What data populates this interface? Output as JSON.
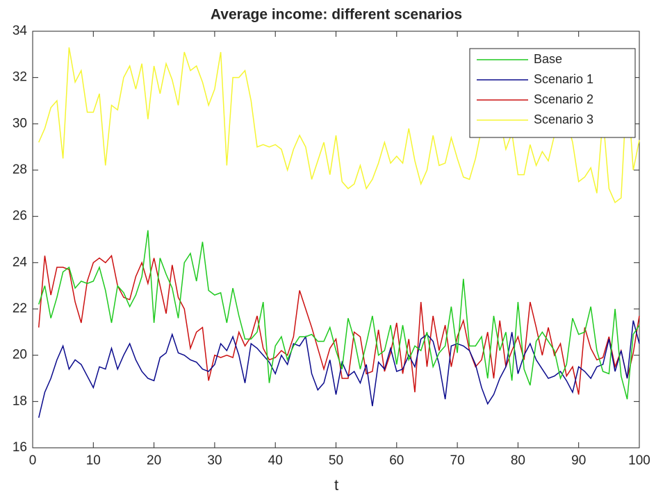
{
  "chart_data": {
    "type": "line",
    "title": "Average income: different scenarios",
    "x_label": "t",
    "x": [
      1,
      2,
      3,
      4,
      5,
      6,
      7,
      8,
      9,
      10,
      11,
      12,
      13,
      14,
      15,
      16,
      17,
      18,
      19,
      20,
      21,
      22,
      23,
      24,
      25,
      26,
      27,
      28,
      29,
      30,
      31,
      32,
      33,
      34,
      35,
      36,
      37,
      38,
      39,
      40,
      41,
      42,
      43,
      44,
      45,
      46,
      47,
      48,
      49,
      50,
      51,
      52,
      53,
      54,
      55,
      56,
      57,
      58,
      59,
      60,
      61,
      62,
      63,
      64,
      65,
      66,
      67,
      68,
      69,
      70,
      71,
      72,
      73,
      74,
      75,
      76,
      77,
      78,
      79,
      80,
      81,
      82,
      83,
      84,
      85,
      86,
      87,
      88,
      89,
      90,
      91,
      92,
      93,
      94,
      95,
      96,
      97,
      98,
      99,
      100
    ],
    "series": [
      {
        "name": "Base",
        "color": "#1fc91f",
        "values": [
          22.2,
          23.0,
          21.6,
          22.5,
          23.6,
          23.8,
          22.9,
          23.2,
          23.1,
          23.2,
          23.8,
          22.8,
          21.4,
          23.0,
          22.7,
          22.1,
          22.6,
          23.4,
          25.4,
          21.4,
          24.2,
          23.5,
          22.9,
          21.6,
          24.0,
          24.4,
          23.2,
          24.9,
          22.8,
          22.6,
          22.7,
          21.4,
          22.9,
          21.7,
          20.7,
          20.7,
          21.0,
          22.3,
          18.8,
          20.4,
          20.8,
          19.8,
          20.4,
          20.8,
          20.8,
          20.9,
          20.6,
          20.6,
          21.2,
          20.2,
          19.4,
          21.6,
          20.7,
          19.4,
          20.5,
          21.7,
          20.0,
          20.2,
          21.3,
          19.6,
          21.3,
          19.8,
          20.4,
          20.2,
          21.0,
          19.5,
          20.1,
          20.4,
          22.1,
          20.1,
          23.3,
          20.4,
          20.4,
          20.8,
          19.0,
          21.7,
          20.2,
          21.0,
          18.9,
          22.3,
          19.4,
          18.7,
          20.6,
          21.0,
          20.6,
          20.2,
          19.0,
          19.6,
          21.6,
          20.9,
          21.0,
          22.1,
          20.2,
          19.3,
          19.2,
          22.0,
          19.1,
          18.1,
          20.9,
          21.3
        ]
      },
      {
        "name": "Scenario 1",
        "color": "#0a0a8c",
        "values": [
          17.3,
          18.4,
          19.0,
          19.8,
          20.4,
          19.4,
          19.8,
          19.6,
          19.1,
          18.6,
          19.5,
          19.4,
          20.3,
          19.4,
          20.0,
          20.5,
          19.8,
          19.3,
          19.0,
          18.9,
          19.9,
          20.1,
          20.9,
          20.1,
          20.0,
          19.8,
          19.7,
          19.4,
          19.3,
          19.6,
          20.5,
          20.2,
          20.8,
          20.0,
          18.8,
          20.5,
          20.3,
          20.0,
          19.7,
          19.2,
          20.0,
          19.6,
          20.5,
          20.4,
          20.8,
          19.2,
          18.5,
          18.8,
          19.8,
          18.3,
          19.7,
          19.1,
          19.3,
          18.8,
          19.6,
          17.8,
          19.7,
          19.4,
          20.3,
          19.3,
          19.4,
          20.0,
          19.5,
          20.7,
          20.9,
          20.6,
          19.6,
          18.1,
          20.4,
          20.5,
          20.4,
          20.2,
          19.6,
          18.6,
          17.9,
          18.3,
          19.0,
          19.5,
          21.0,
          19.2,
          20.0,
          20.5,
          19.8,
          19.4,
          19.0,
          19.1,
          19.3,
          18.9,
          18.4,
          19.5,
          19.3,
          19.0,
          19.5,
          19.6,
          20.7,
          19.3,
          20.2,
          19.0,
          21.5,
          20.5
        ]
      },
      {
        "name": "Scenario 2",
        "color": "#cc1010",
        "values": [
          21.2,
          24.3,
          22.6,
          23.8,
          23.8,
          23.7,
          22.3,
          21.4,
          23.2,
          24.0,
          24.2,
          24.0,
          24.3,
          23.0,
          22.5,
          22.4,
          23.4,
          24.0,
          23.1,
          24.2,
          23.0,
          21.8,
          23.9,
          22.5,
          22.0,
          20.3,
          21.0,
          21.2,
          18.9,
          20.0,
          19.9,
          20.0,
          19.9,
          21.0,
          20.4,
          20.8,
          21.7,
          20.3,
          19.8,
          19.9,
          20.2,
          20.0,
          20.8,
          22.8,
          22.0,
          21.2,
          20.3,
          19.4,
          20.3,
          20.7,
          19.0,
          19.0,
          21.0,
          20.8,
          19.2,
          19.3,
          21.1,
          19.3,
          20.1,
          21.4,
          19.2,
          20.7,
          18.4,
          22.3,
          19.5,
          21.7,
          20.2,
          21.3,
          19.5,
          20.8,
          21.5,
          20.2,
          19.5,
          19.8,
          21.0,
          19.0,
          21.5,
          19.5,
          20.2,
          20.8,
          19.8,
          22.3,
          21.2,
          20.0,
          21.2,
          20.0,
          20.5,
          19.1,
          19.5,
          18.3,
          21.2,
          20.3,
          19.8,
          19.9,
          20.8,
          19.5,
          20.2,
          19.0,
          20.1,
          21.7
        ]
      },
      {
        "name": "Scenario 3",
        "color": "#f5f532",
        "values": [
          29.2,
          29.8,
          30.7,
          31.0,
          28.5,
          33.3,
          31.8,
          32.3,
          30.5,
          30.5,
          31.3,
          28.2,
          30.8,
          30.6,
          32.0,
          32.5,
          31.5,
          32.6,
          30.2,
          32.5,
          31.3,
          32.6,
          31.9,
          30.8,
          33.1,
          32.3,
          32.5,
          31.8,
          30.8,
          31.5,
          33.1,
          28.2,
          32.0,
          32.0,
          32.3,
          31.0,
          29.0,
          29.1,
          29.0,
          29.1,
          28.9,
          28.0,
          28.9,
          29.5,
          29.0,
          27.6,
          28.4,
          29.2,
          27.8,
          29.5,
          27.5,
          27.2,
          27.4,
          28.2,
          27.2,
          27.6,
          28.3,
          29.2,
          28.3,
          28.6,
          28.3,
          29.8,
          28.4,
          27.4,
          28.0,
          29.5,
          28.2,
          28.3,
          29.4,
          28.5,
          27.7,
          27.6,
          28.5,
          29.8,
          29.5,
          29.8,
          30.2,
          28.9,
          29.6,
          27.8,
          27.8,
          29.1,
          28.2,
          28.8,
          28.4,
          29.5,
          29.6,
          30.2,
          29.2,
          27.5,
          27.7,
          28.1,
          27.0,
          30.3,
          27.2,
          26.6,
          26.8,
          31.8,
          28.0,
          29.3
        ]
      }
    ],
    "xlim": [
      0,
      100
    ],
    "xticks": [
      0,
      10,
      20,
      30,
      40,
      50,
      60,
      70,
      80,
      90,
      100
    ],
    "ylim": [
      16,
      34
    ],
    "yticks": [
      16,
      18,
      20,
      22,
      24,
      26,
      28,
      30,
      32,
      34
    ],
    "legend": "upper right",
    "grid": false
  }
}
